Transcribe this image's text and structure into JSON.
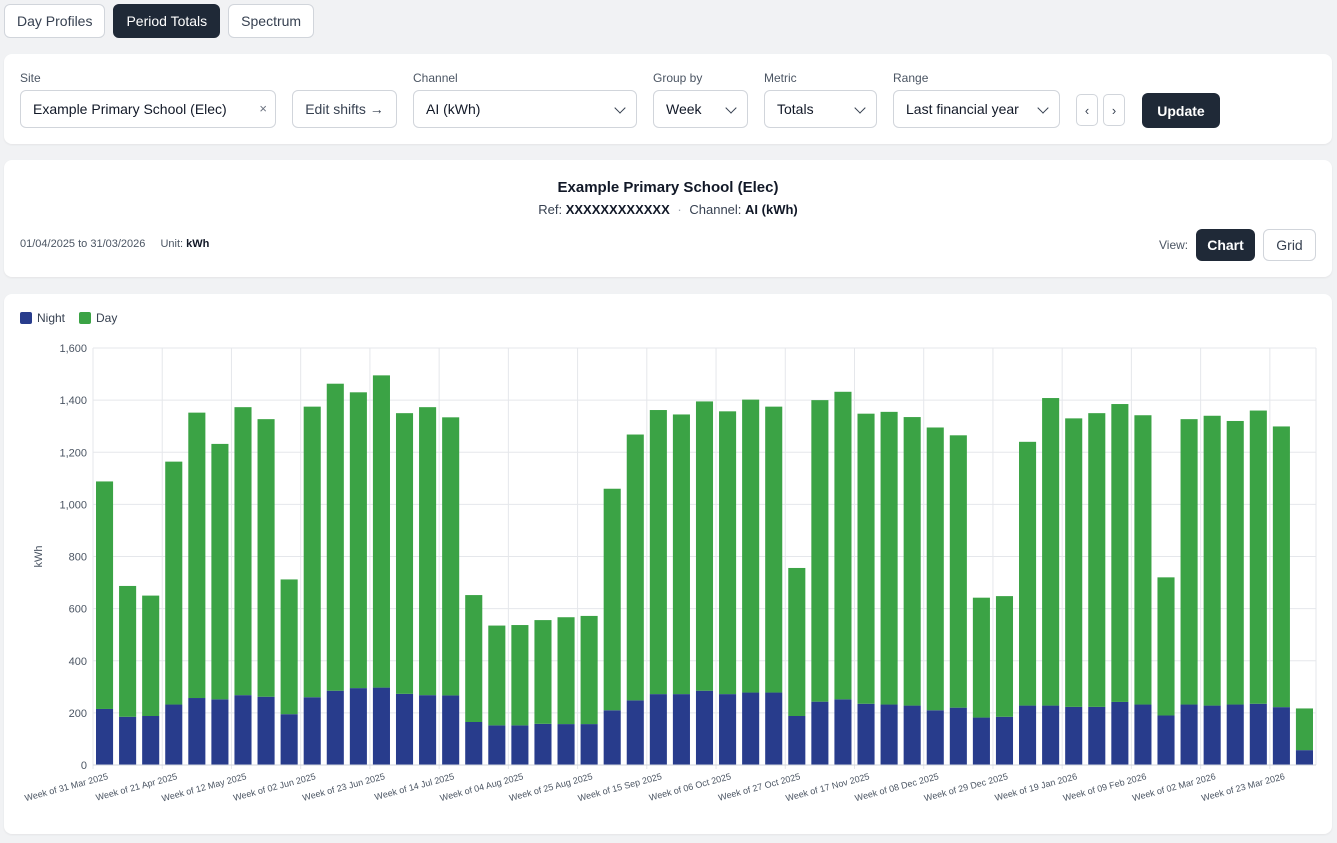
{
  "tabs": [
    {
      "label": "Day Profiles",
      "active": false
    },
    {
      "label": "Period Totals",
      "active": true
    },
    {
      "label": "Spectrum",
      "active": false
    }
  ],
  "controls": {
    "site_label": "Site",
    "site_value": "Example Primary School (Elec)",
    "site_clear": "×",
    "edit_shifts": "Edit shifts →",
    "channel_label": "Channel",
    "channel_value": "AI (kWh)",
    "group_label": "Group by",
    "group_value": "Week",
    "metric_label": "Metric",
    "metric_value": "Totals",
    "range_label": "Range",
    "range_value": "Last financial year",
    "prev": "‹",
    "next": "›",
    "update": "Update"
  },
  "info": {
    "title": "Example Primary School (Elec)",
    "ref_label": "Ref:",
    "ref_value": "XXXXXXXXXXXX",
    "channel_label": "Channel:",
    "channel_value": "AI (kWh)",
    "date_range": "01/04/2025 to 31/03/2026",
    "unit_label": "Unit:",
    "unit_value": "kWh",
    "view_label": "View:",
    "view_chart": "Chart",
    "view_grid": "Grid"
  },
  "colors": {
    "night": "#283c8c",
    "day": "#3ba345"
  },
  "chart_data": {
    "type": "bar",
    "stacked": true,
    "ylabel": "kWh",
    "ylim": [
      0,
      1600
    ],
    "yticks": [
      "0",
      "200",
      "400",
      "600",
      "800",
      "1,000",
      "1,200",
      "1,400",
      "1,600"
    ],
    "legend": [
      "Night",
      "Day"
    ],
    "legend_position": "top-left",
    "grid": true,
    "xtick_labels": [
      "Week of 31 Mar 2025",
      "Week of 21 Apr 2025",
      "Week of 12 May 2025",
      "Week of 02 Jun 2025",
      "Week of 23 Jun 2025",
      "Week of 14 Jul 2025",
      "Week of 04 Aug 2025",
      "Week of 25 Aug 2025",
      "Week of 15 Sep 2025",
      "Week of 06 Oct 2025",
      "Week of 27 Oct 2025",
      "Week of 17 Nov 2025",
      "Week of 08 Dec 2025",
      "Week of 29 Dec 2025",
      "Week of 19 Jan 2026",
      "Week of 09 Feb 2026",
      "Week of 02 Mar 2026",
      "Week of 23 Mar 2026"
    ],
    "series": [
      {
        "name": "Night",
        "values": [
          215,
          185,
          188,
          232,
          257,
          252,
          268,
          262,
          195,
          260,
          285,
          295,
          297,
          273,
          268,
          267,
          165,
          152,
          152,
          158,
          157,
          157,
          210,
          248,
          272,
          272,
          285,
          272,
          278,
          278,
          188,
          243,
          252,
          235,
          232,
          228,
          210,
          220,
          182,
          185,
          228,
          228,
          223,
          223,
          242,
          232,
          190,
          232,
          228,
          232,
          235,
          222,
          57
        ]
      },
      {
        "name": "Day",
        "values": [
          873,
          502,
          462,
          932,
          1095,
          980,
          1105,
          1065,
          517,
          1115,
          1178,
          1135,
          1198,
          1077,
          1105,
          1067,
          487,
          383,
          385,
          398,
          410,
          415,
          850,
          1020,
          1090,
          1073,
          1110,
          1085,
          1124,
          1097,
          568,
          1157,
          1180,
          1113,
          1123,
          1107,
          1085,
          1045,
          460,
          463,
          1012,
          1180,
          1107,
          1127,
          1143,
          1110,
          530,
          1095,
          1112,
          1088,
          1125,
          1077,
          160
        ]
      }
    ]
  }
}
